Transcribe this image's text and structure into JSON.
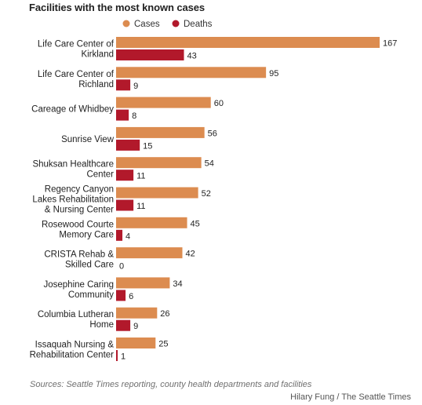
{
  "title": "Facilities with the most known cases",
  "source": "Sources: Seattle Times reporting, county health departments and facilities",
  "credit": "Hilary Fung / The Seattle Times",
  "colors": {
    "cases": "#dc8c50",
    "deaths": "#b2192b",
    "text": "#222222"
  },
  "chart_data": {
    "type": "bar",
    "orientation": "horizontal",
    "title": "Facilities with the most known cases",
    "legend_position": "top-right",
    "grid": false,
    "xlim": [
      0,
      167
    ],
    "categories": [
      [
        "Life Care Center of",
        "Kirkland"
      ],
      [
        "Life Care Center of",
        "Richland"
      ],
      [
        "Careage of Whidbey"
      ],
      [
        "Sunrise View"
      ],
      [
        "Shuksan Healthcare",
        "Center"
      ],
      [
        "Regency Canyon",
        "Lakes Rehabilitation",
        "& Nursing Center"
      ],
      [
        "Rosewood Courte",
        "Memory Care"
      ],
      [
        "CRISTA Rehab &",
        "Skilled Care"
      ],
      [
        "Josephine Caring",
        "Community"
      ],
      [
        "Columbia Lutheran",
        "Home"
      ],
      [
        "Issaquah Nursing &",
        "Rehabilitation Center"
      ]
    ],
    "series": [
      {
        "name": "Cases",
        "color": "#dc8c50",
        "values": [
          167,
          95,
          60,
          56,
          54,
          52,
          45,
          42,
          34,
          26,
          25
        ]
      },
      {
        "name": "Deaths",
        "color": "#b2192b",
        "values": [
          43,
          9,
          8,
          15,
          11,
          11,
          4,
          0,
          6,
          9,
          1
        ]
      }
    ]
  }
}
